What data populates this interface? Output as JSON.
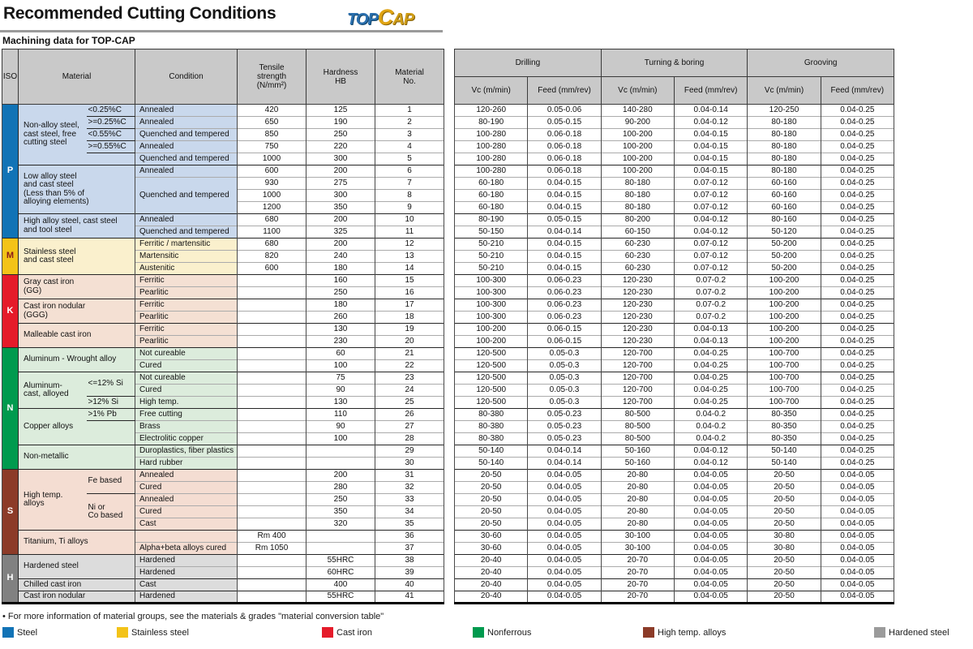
{
  "page": {
    "title": "Recommended Cutting Conditions",
    "subtitle": "Machining data for TOP-CAP",
    "logo": {
      "part1": "TOP",
      "part2": "C",
      "part3": "AP"
    }
  },
  "table": {
    "left_headers": {
      "iso": "ISO",
      "material": "Material",
      "condition": "Condition",
      "tensile": "Tensile\nstrength\n(N/mm²)",
      "hardness": "Hardness\nHB",
      "material_no": "Material\nNo."
    },
    "right_groups": [
      {
        "label": "Drilling"
      },
      {
        "label": "Turning & boring"
      },
      {
        "label": "Grooving"
      }
    ],
    "sub_headers": {
      "vc": "Vc (m/min)",
      "feed": "Feed (mm/rev)"
    }
  },
  "sections": [
    {
      "iso": "P",
      "iso_bg": "#1173b6",
      "iso_color": "#ffffff",
      "cell_bg": "#c9d8ec",
      "materials": [
        {
          "label": "Non-alloy steel,\ncast steel, free\ncutting steel",
          "span": 5,
          "has_sub": true,
          "subs": [
            {
              "text": "<0.25%C",
              "span": 1
            },
            {
              "text": ">=0.25%C",
              "span": 1
            },
            {
              "text": "<0.55%C",
              "span": 1
            },
            {
              "text": ">=0.55%C",
              "span": 1
            },
            {
              "text": "",
              "span": 1
            }
          ],
          "conditions": [
            {
              "text": "Annealed",
              "span": 1
            },
            {
              "text": "Annealed",
              "span": 1
            },
            {
              "text": "Quenched and tempered",
              "span": 1
            },
            {
              "text": "Annealed",
              "span": 1
            },
            {
              "text": "Quenched and tempered",
              "span": 1
            }
          ]
        },
        {
          "label": "Low alloy steel\nand cast steel\n(Less than 5% of\nalloying elements)",
          "span": 4,
          "has_sub": false,
          "conditions": [
            {
              "text": "Annealed",
              "span": 1
            },
            {
              "text": "Quenched and tempered",
              "span": 3
            }
          ]
        },
        {
          "label": "High alloy steel, cast steel\nand tool steel",
          "span": 2,
          "has_sub": false,
          "conditions": [
            {
              "text": "Annealed",
              "span": 1
            },
            {
              "text": "Quenched and tempered",
              "span": 1
            }
          ]
        }
      ]
    },
    {
      "iso": "M",
      "iso_bg": "#f3c318",
      "iso_color": "#8b1a1a",
      "cell_bg": "#faf0cd",
      "materials": [
        {
          "label": "Stainless steel\nand cast steel",
          "span": 3,
          "has_sub": false,
          "conditions": [
            {
              "text": "Ferritic / martensitic",
              "span": 1
            },
            {
              "text": "Martensitic",
              "span": 1
            },
            {
              "text": "Austenitic",
              "span": 1
            }
          ]
        }
      ]
    },
    {
      "iso": "K",
      "iso_bg": "#e51b2a",
      "iso_color": "#ffffff",
      "cell_bg": "#f4e0d3",
      "materials": [
        {
          "label": "Gray cast iron\n(GG)",
          "span": 2,
          "has_sub": false,
          "conditions": [
            {
              "text": "Ferritic",
              "span": 1
            },
            {
              "text": "Pearlitic",
              "span": 1
            }
          ]
        },
        {
          "label": "Cast iron nodular\n(GGG)",
          "span": 2,
          "has_sub": false,
          "conditions": [
            {
              "text": "Ferritic",
              "span": 1
            },
            {
              "text": "Pearlitic",
              "span": 1
            }
          ]
        },
        {
          "label": "Malleable cast iron",
          "span": 2,
          "has_sub": false,
          "conditions": [
            {
              "text": "Ferritic",
              "span": 1
            },
            {
              "text": "Pearlitic",
              "span": 1
            }
          ]
        }
      ]
    },
    {
      "iso": "N",
      "iso_bg": "#009a4e",
      "iso_color": "#ffffff",
      "cell_bg": "#dcecdc",
      "materials": [
        {
          "label": "Aluminum - Wrought alloy",
          "span": 2,
          "has_sub": false,
          "conditions": [
            {
              "text": "Not cureable",
              "span": 1
            },
            {
              "text": "Cured",
              "span": 1
            }
          ]
        },
        {
          "label": "Aluminum-\ncast, alloyed",
          "span": 3,
          "has_sub": true,
          "subs": [
            {
              "text": "<=12% Si",
              "span": 2
            },
            {
              "text": ">12% Si",
              "span": 1
            }
          ],
          "conditions": [
            {
              "text": "Not cureable",
              "span": 1
            },
            {
              "text": "Cured",
              "span": 1
            },
            {
              "text": "High temp.",
              "span": 1
            }
          ]
        },
        {
          "label": "Copper alloys",
          "span": 3,
          "has_sub": true,
          "subs": [
            {
              "text": ">1% Pb",
              "span": 1
            },
            {
              "text": "",
              "span": 2
            }
          ],
          "conditions": [
            {
              "text": "Free cutting",
              "span": 1
            },
            {
              "text": "Brass",
              "span": 1
            },
            {
              "text": "Electrolitic copper",
              "span": 1
            }
          ]
        },
        {
          "label": "Non-metallic",
          "span": 2,
          "has_sub": false,
          "conditions": [
            {
              "text": "Duroplastics, fiber plastics",
              "span": 1
            },
            {
              "text": "Hard rubber",
              "span": 1
            }
          ]
        }
      ]
    },
    {
      "iso": "S",
      "iso_bg": "#8c3b28",
      "iso_color": "#ffffff",
      "cell_bg": "#f4ddd2",
      "materials": [
        {
          "label": "High temp.\nalloys",
          "span": 5,
          "has_sub": true,
          "subs": [
            {
              "text": "Fe based",
              "span": 2
            },
            {
              "text": "Ni or\nCo based",
              "span": 3
            }
          ],
          "conditions": [
            {
              "text": "Annealed",
              "span": 1
            },
            {
              "text": "Cured",
              "span": 1
            },
            {
              "text": "Annealed",
              "span": 1
            },
            {
              "text": "Cured",
              "span": 1
            },
            {
              "text": "Cast",
              "span": 1
            }
          ]
        },
        {
          "label": "Titanium, Ti alloys",
          "span": 2,
          "has_sub": false,
          "conditions": [
            {
              "text": "",
              "span": 1
            },
            {
              "text": "Alpha+beta alloys cured",
              "span": 1
            }
          ]
        }
      ]
    },
    {
      "iso": "H",
      "iso_bg": "#818181",
      "iso_color": "#ffffff",
      "cell_bg": "#dcdcdc",
      "materials": [
        {
          "label": "Hardened steel",
          "span": 2,
          "has_sub": false,
          "conditions": [
            {
              "text": "Hardened",
              "span": 1
            },
            {
              "text": "Hardened",
              "span": 1
            }
          ]
        },
        {
          "label": "Chilled cast iron",
          "span": 1,
          "has_sub": false,
          "conditions": [
            {
              "text": "Cast",
              "span": 1
            }
          ]
        },
        {
          "label": "Cast iron nodular",
          "span": 1,
          "has_sub": false,
          "conditions": [
            {
              "text": "Hardened",
              "span": 1
            }
          ]
        }
      ]
    }
  ],
  "rows": [
    {
      "tensile": "420",
      "hb": "125",
      "no": "1",
      "d_vc": "120-260",
      "d_f": "0.05-0.06",
      "t_vc": "140-280",
      "t_f": "0.04-0.14",
      "g_vc": "120-250",
      "g_f": "0.04-0.25"
    },
    {
      "tensile": "650",
      "hb": "190",
      "no": "2",
      "d_vc": "80-190",
      "d_f": "0.05-0.15",
      "t_vc": "90-200",
      "t_f": "0.04-0.12",
      "g_vc": "80-180",
      "g_f": "0.04-0.25"
    },
    {
      "tensile": "850",
      "hb": "250",
      "no": "3",
      "d_vc": "100-280",
      "d_f": "0.06-0.18",
      "t_vc": "100-200",
      "t_f": "0.04-0.15",
      "g_vc": "80-180",
      "g_f": "0.04-0.25"
    },
    {
      "tensile": "750",
      "hb": "220",
      "no": "4",
      "d_vc": "100-280",
      "d_f": "0.06-0.18",
      "t_vc": "100-200",
      "t_f": "0.04-0.15",
      "g_vc": "80-180",
      "g_f": "0.04-0.25"
    },
    {
      "tensile": "1000",
      "hb": "300",
      "no": "5",
      "d_vc": "100-280",
      "d_f": "0.06-0.18",
      "t_vc": "100-200",
      "t_f": "0.04-0.15",
      "g_vc": "80-180",
      "g_f": "0.04-0.25"
    },
    {
      "tensile": "600",
      "hb": "200",
      "no": "6",
      "d_vc": "100-280",
      "d_f": "0.06-0.18",
      "t_vc": "100-200",
      "t_f": "0.04-0.15",
      "g_vc": "80-180",
      "g_f": "0.04-0.25"
    },
    {
      "tensile": "930",
      "hb": "275",
      "no": "7",
      "d_vc": "60-180",
      "d_f": "0.04-0.15",
      "t_vc": "80-180",
      "t_f": "0.07-0.12",
      "g_vc": "60-160",
      "g_f": "0.04-0.25"
    },
    {
      "tensile": "1000",
      "hb": "300",
      "no": "8",
      "d_vc": "60-180",
      "d_f": "0.04-0.15",
      "t_vc": "80-180",
      "t_f": "0.07-0.12",
      "g_vc": "60-160",
      "g_f": "0.04-0.25"
    },
    {
      "tensile": "1200",
      "hb": "350",
      "no": "9",
      "d_vc": "60-180",
      "d_f": "0.04-0.15",
      "t_vc": "80-180",
      "t_f": "0.07-0.12",
      "g_vc": "60-160",
      "g_f": "0.04-0.25"
    },
    {
      "tensile": "680",
      "hb": "200",
      "no": "10",
      "d_vc": "80-190",
      "d_f": "0.05-0.15",
      "t_vc": "80-200",
      "t_f": "0.04-0.12",
      "g_vc": "80-160",
      "g_f": "0.04-0.25"
    },
    {
      "tensile": "1100",
      "hb": "325",
      "no": "11",
      "d_vc": "50-150",
      "d_f": "0.04-0.14",
      "t_vc": "60-150",
      "t_f": "0.04-0.12",
      "g_vc": "50-120",
      "g_f": "0.04-0.25"
    },
    {
      "tensile": "680",
      "hb": "200",
      "no": "12",
      "d_vc": "50-210",
      "d_f": "0.04-0.15",
      "t_vc": "60-230",
      "t_f": "0.07-0.12",
      "g_vc": "50-200",
      "g_f": "0.04-0.25"
    },
    {
      "tensile": "820",
      "hb": "240",
      "no": "13",
      "d_vc": "50-210",
      "d_f": "0.04-0.15",
      "t_vc": "60-230",
      "t_f": "0.07-0.12",
      "g_vc": "50-200",
      "g_f": "0.04-0.25"
    },
    {
      "tensile": "600",
      "hb": "180",
      "no": "14",
      "d_vc": "50-210",
      "d_f": "0.04-0.15",
      "t_vc": "60-230",
      "t_f": "0.07-0.12",
      "g_vc": "50-200",
      "g_f": "0.04-0.25"
    },
    {
      "tensile": "",
      "hb": "160",
      "no": "15",
      "d_vc": "100-300",
      "d_f": "0.06-0.23",
      "t_vc": "120-230",
      "t_f": "0.07-0.2",
      "g_vc": "100-200",
      "g_f": "0.04-0.25"
    },
    {
      "tensile": "",
      "hb": "250",
      "no": "16",
      "d_vc": "100-300",
      "d_f": "0.06-0.23",
      "t_vc": "120-230",
      "t_f": "0.07-0.2",
      "g_vc": "100-200",
      "g_f": "0.04-0.25"
    },
    {
      "tensile": "",
      "hb": "180",
      "no": "17",
      "d_vc": "100-300",
      "d_f": "0.06-0.23",
      "t_vc": "120-230",
      "t_f": "0.07-0.2",
      "g_vc": "100-200",
      "g_f": "0.04-0.25"
    },
    {
      "tensile": "",
      "hb": "260",
      "no": "18",
      "d_vc": "100-300",
      "d_f": "0.06-0.23",
      "t_vc": "120-230",
      "t_f": "0.07-0.2",
      "g_vc": "100-200",
      "g_f": "0.04-0.25"
    },
    {
      "tensile": "",
      "hb": "130",
      "no": "19",
      "d_vc": "100-200",
      "d_f": "0.06-0.15",
      "t_vc": "120-230",
      "t_f": "0.04-0.13",
      "g_vc": "100-200",
      "g_f": "0.04-0.25"
    },
    {
      "tensile": "",
      "hb": "230",
      "no": "20",
      "d_vc": "100-200",
      "d_f": "0.06-0.15",
      "t_vc": "120-230",
      "t_f": "0.04-0.13",
      "g_vc": "100-200",
      "g_f": "0.04-0.25"
    },
    {
      "tensile": "",
      "hb": "60",
      "no": "21",
      "d_vc": "120-500",
      "d_f": "0.05-0.3",
      "t_vc": "120-700",
      "t_f": "0.04-0.25",
      "g_vc": "100-700",
      "g_f": "0.04-0.25"
    },
    {
      "tensile": "",
      "hb": "100",
      "no": "22",
      "d_vc": "120-500",
      "d_f": "0.05-0.3",
      "t_vc": "120-700",
      "t_f": "0.04-0.25",
      "g_vc": "100-700",
      "g_f": "0.04-0.25"
    },
    {
      "tensile": "",
      "hb": "75",
      "no": "23",
      "d_vc": "120-500",
      "d_f": "0.05-0.3",
      "t_vc": "120-700",
      "t_f": "0.04-0.25",
      "g_vc": "100-700",
      "g_f": "0.04-0.25"
    },
    {
      "tensile": "",
      "hb": "90",
      "no": "24",
      "d_vc": "120-500",
      "d_f": "0.05-0.3",
      "t_vc": "120-700",
      "t_f": "0.04-0.25",
      "g_vc": "100-700",
      "g_f": "0.04-0.25"
    },
    {
      "tensile": "",
      "hb": "130",
      "no": "25",
      "d_vc": "120-500",
      "d_f": "0.05-0.3",
      "t_vc": "120-700",
      "t_f": "0.04-0.25",
      "g_vc": "100-700",
      "g_f": "0.04-0.25"
    },
    {
      "tensile": "",
      "hb": "110",
      "no": "26",
      "d_vc": "80-380",
      "d_f": "0.05-0.23",
      "t_vc": "80-500",
      "t_f": "0.04-0.2",
      "g_vc": "80-350",
      "g_f": "0.04-0.25"
    },
    {
      "tensile": "",
      "hb": "90",
      "no": "27",
      "d_vc": "80-380",
      "d_f": "0.05-0.23",
      "t_vc": "80-500",
      "t_f": "0.04-0.2",
      "g_vc": "80-350",
      "g_f": "0.04-0.25"
    },
    {
      "tensile": "",
      "hb": "100",
      "no": "28",
      "d_vc": "80-380",
      "d_f": "0.05-0.23",
      "t_vc": "80-500",
      "t_f": "0.04-0.2",
      "g_vc": "80-350",
      "g_f": "0.04-0.25"
    },
    {
      "tensile": "",
      "hb": "",
      "no": "29",
      "d_vc": "50-140",
      "d_f": "0.04-0.14",
      "t_vc": "50-160",
      "t_f": "0.04-0.12",
      "g_vc": "50-140",
      "g_f": "0.04-0.25"
    },
    {
      "tensile": "",
      "hb": "",
      "no": "30",
      "d_vc": "50-140",
      "d_f": "0.04-0.14",
      "t_vc": "50-160",
      "t_f": "0.04-0.12",
      "g_vc": "50-140",
      "g_f": "0.04-0.25"
    },
    {
      "tensile": "",
      "hb": "200",
      "no": "31",
      "d_vc": "20-50",
      "d_f": "0.04-0.05",
      "t_vc": "20-80",
      "t_f": "0.04-0.05",
      "g_vc": "20-50",
      "g_f": "0.04-0.05"
    },
    {
      "tensile": "",
      "hb": "280",
      "no": "32",
      "d_vc": "20-50",
      "d_f": "0.04-0.05",
      "t_vc": "20-80",
      "t_f": "0.04-0.05",
      "g_vc": "20-50",
      "g_f": "0.04-0.05"
    },
    {
      "tensile": "",
      "hb": "250",
      "no": "33",
      "d_vc": "20-50",
      "d_f": "0.04-0.05",
      "t_vc": "20-80",
      "t_f": "0.04-0.05",
      "g_vc": "20-50",
      "g_f": "0.04-0.05"
    },
    {
      "tensile": "",
      "hb": "350",
      "no": "34",
      "d_vc": "20-50",
      "d_f": "0.04-0.05",
      "t_vc": "20-80",
      "t_f": "0.04-0.05",
      "g_vc": "20-50",
      "g_f": "0.04-0.05"
    },
    {
      "tensile": "",
      "hb": "320",
      "no": "35",
      "d_vc": "20-50",
      "d_f": "0.04-0.05",
      "t_vc": "20-80",
      "t_f": "0.04-0.05",
      "g_vc": "20-50",
      "g_f": "0.04-0.05"
    },
    {
      "tensile": "Rm 400",
      "hb": "",
      "no": "36",
      "d_vc": "30-60",
      "d_f": "0.04-0.05",
      "t_vc": "30-100",
      "t_f": "0.04-0.05",
      "g_vc": "30-80",
      "g_f": "0.04-0.05"
    },
    {
      "tensile": "Rm 1050",
      "hb": "",
      "no": "37",
      "d_vc": "30-60",
      "d_f": "0.04-0.05",
      "t_vc": "30-100",
      "t_f": "0.04-0.05",
      "g_vc": "30-80",
      "g_f": "0.04-0.05"
    },
    {
      "tensile": "",
      "hb": "55HRC",
      "no": "38",
      "d_vc": "20-40",
      "d_f": "0.04-0.05",
      "t_vc": "20-70",
      "t_f": "0.04-0.05",
      "g_vc": "20-50",
      "g_f": "0.04-0.05"
    },
    {
      "tensile": "",
      "hb": "60HRC",
      "no": "39",
      "d_vc": "20-40",
      "d_f": "0.04-0.05",
      "t_vc": "20-70",
      "t_f": "0.04-0.05",
      "g_vc": "20-50",
      "g_f": "0.04-0.05"
    },
    {
      "tensile": "",
      "hb": "400",
      "no": "40",
      "d_vc": "20-40",
      "d_f": "0.04-0.05",
      "t_vc": "20-70",
      "t_f": "0.04-0.05",
      "g_vc": "20-50",
      "g_f": "0.04-0.05"
    },
    {
      "tensile": "",
      "hb": "55HRC",
      "no": "41",
      "d_vc": "20-40",
      "d_f": "0.04-0.05",
      "t_vc": "20-70",
      "t_f": "0.04-0.05",
      "g_vc": "20-50",
      "g_f": "0.04-0.05"
    }
  ],
  "footnote": "• For more information of material groups, see the materials & grades \"material conversion table\"",
  "legend": [
    {
      "label": "Steel",
      "color": "#1173b6"
    },
    {
      "label": "Stainless steel",
      "color": "#f3c318"
    },
    {
      "label": "Cast iron",
      "color": "#e51b2a"
    },
    {
      "label": "Nonferrous",
      "color": "#009a4e"
    },
    {
      "label": "High temp. alloys",
      "color": "#8c3b28"
    },
    {
      "label": "Hardened steel",
      "color": "#9b9b9b"
    }
  ]
}
